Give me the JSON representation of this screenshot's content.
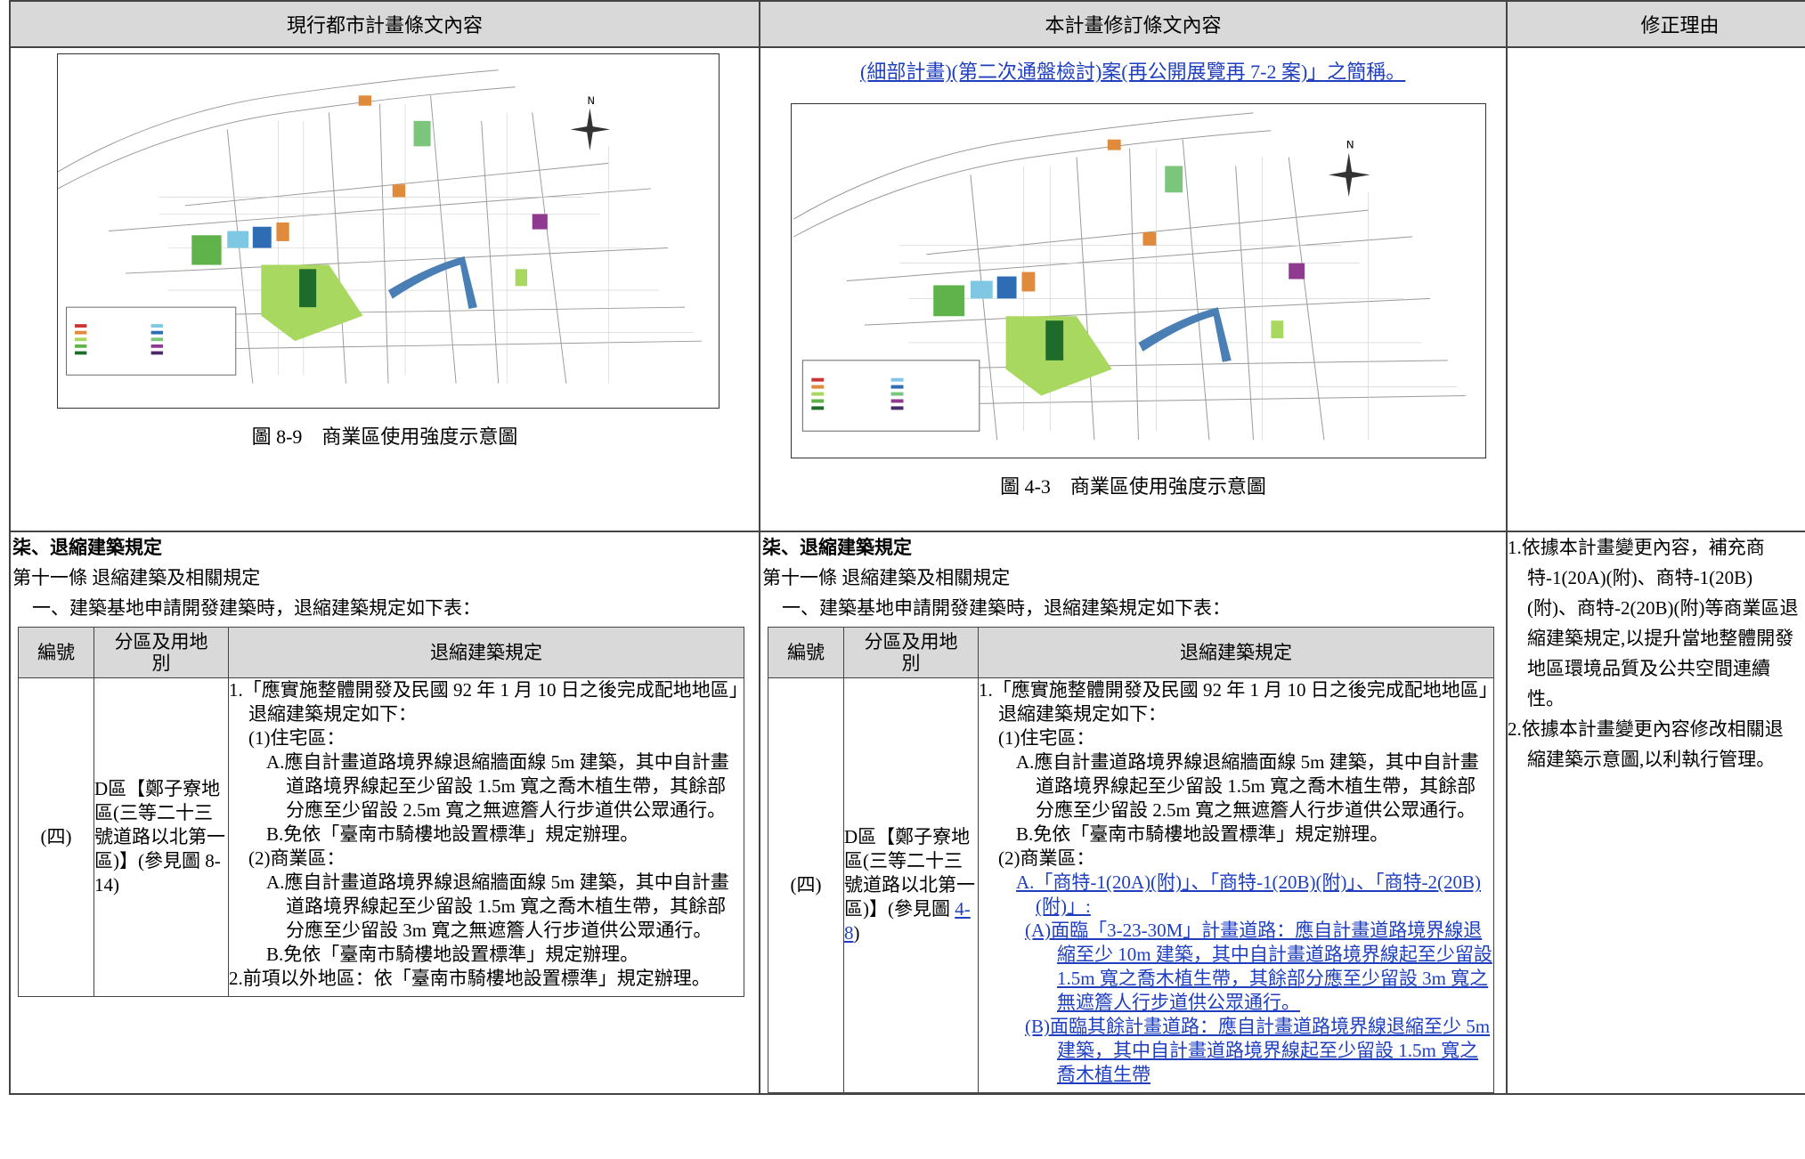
{
  "header": {
    "current": "現行都市計畫條文內容",
    "revised": "本計畫修訂條文內容",
    "reason": "修正理由"
  },
  "current": {
    "map_caption": "圖 8-9　商業區使用強度示意圖",
    "section": "柒、退縮建築規定",
    "article": "第十一條 退縮建築及相關規定",
    "clause": "一、建築基地申請開發建築時，退縮建築規定如下表：",
    "table": {
      "headers": [
        "編號",
        "分區及用地別",
        "退縮建築規定"
      ],
      "no": "(四)",
      "zone": "D區【鄭子寮地區(三等二十三號道路以北第一區)】(參見圖 8-14)",
      "rules": [
        "1.「應實施整體開發及民國 92 年 1 月 10 日之後完成配地地區」退縮建築規定如下：",
        "(1)住宅區：",
        "A.應自計畫道路境界線退縮牆面線 5m 建築，其中自計畫道路境界線起至少留設 1.5m 寬之喬木植生帶，其餘部分應至少留設 2.5m 寬之無遮簷人行步道供公眾通行。",
        "B.免依「臺南市騎樓地設置標準」規定辦理。",
        "(2)商業區：",
        "A.應自計畫道路境界線退縮牆面線 5m 建築，其中自計畫道路境界線起至少留設 1.5m 寬之喬木植生帶，其餘部分應至少留設 3m 寬之無遮簷人行步道供公眾通行。",
        "B.免依「臺南市騎樓地設置標準」規定辦理。",
        "2.前項以外地區：依「臺南市騎樓地設置標準」規定辦理。"
      ]
    }
  },
  "revised": {
    "intro": "(細部計畫)(第二次通盤檢討)案(再公開展覽再 7-2 案)」之簡稱。",
    "map_caption": "圖 4-3　商業區使用強度示意圖",
    "section": "柒、退縮建築規定",
    "article": "第十一條 退縮建築及相關規定",
    "clause": "一、建築基地申請開發建築時，退縮建築規定如下表：",
    "table": {
      "headers": [
        "編號",
        "分區及用地別",
        "退縮建築規定"
      ],
      "no": "(四)",
      "zone": "D區【鄭子寮地區(三等二十三號道路以北第一區)】(參見圖 ",
      "zone_link": "4-8",
      "zone_end": ")",
      "rules": [
        "1.「應實施整體開發及民國 92 年 1 月 10 日之後完成配地地區」退縮建築規定如下：",
        "(1)住宅區：",
        "A.應自計畫道路境界線退縮牆面線 5m 建築，其中自計畫道路境界線起至少留設 1.5m 寬之喬木植生帶，其餘部分應至少留設 2.5m 寬之無遮簷人行步道供公眾通行。",
        "B.免依「臺南市騎樓地設置標準」規定辦理。",
        "(2)商業區：",
        "A.「商特-1(20A)(附)」、「商特-1(20B)(附)」、「商特-2(20B)(附)」:",
        "(A)面臨「3-23-30M」計畫道路：應自計畫道路境界線退縮至少 10m 建築，其中自計畫道路境界線起至少留設 1.5m 寬之喬木植生帶，其餘部分應至少留設 3m 寬之無遮簷人行步道供公眾通行。",
        "(B)面臨其餘計畫道路：應自計畫道路境界線退縮至少 5m 建築，其中自計畫道路境界線起至少留設 1.5m 寬之喬木植生帶"
      ]
    }
  },
  "reasons": [
    "1.依據本計畫變更內容，補充商特-1(20A)(附)、商特-1(20B)(附)、商特-2(20B)(附)等商業區退縮建築規定,以提升當地整體開發地區環境品質及公共空間連續性。",
    "2.依據本計畫變更內容修改相關退縮建築示意圖,以利執行管理。"
  ]
}
